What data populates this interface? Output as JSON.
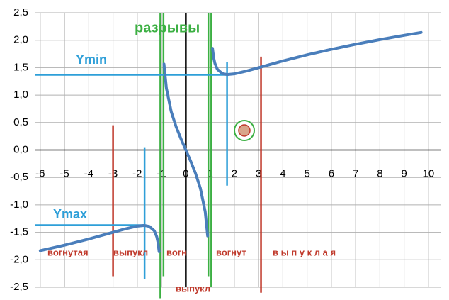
{
  "chart_data": {
    "type": "line",
    "x": [
      -6,
      -5,
      -4,
      -3,
      -2.5,
      -2,
      -1.7,
      -1.5,
      -1.3,
      -1.2,
      -1.15,
      -1.1,
      -1,
      -0.9,
      -0.8,
      -0.6,
      -0.4,
      -0.2,
      0,
      0.2,
      0.4,
      0.6,
      0.8,
      0.9,
      1,
      1.1,
      1.15,
      1.2,
      1.3,
      1.5,
      1.7,
      2,
      2.5,
      3,
      4,
      5,
      6,
      7,
      8,
      9,
      9.7
    ],
    "series": [
      {
        "color": "#4a7ebb",
        "values": [
          -1.834,
          -1.734,
          -1.622,
          -1.5,
          -1.438,
          -1.387,
          -1.375,
          -1.393,
          -1.471,
          -1.577,
          -1.676,
          -1.852,
          null,
          1.565,
          1.125,
          0.696,
          0.424,
          0.203,
          0,
          -0.203,
          -0.424,
          -0.696,
          -1.125,
          -1.565,
          null,
          1.852,
          1.676,
          1.577,
          1.471,
          1.393,
          1.375,
          1.387,
          1.438,
          1.5,
          1.622,
          1.734,
          1.834,
          1.926,
          2.011,
          2.089,
          2.141
        ]
      }
    ],
    "xlim": [
      -6.2,
      10.5
    ],
    "ylim": [
      -2.5,
      2.5
    ],
    "xticks": [
      -6,
      -5,
      -4,
      -3,
      -2,
      -1,
      0,
      1,
      2,
      3,
      4,
      5,
      6,
      7,
      8,
      9,
      10
    ],
    "yticks": [
      {
        "value": -2.5,
        "label": "-2,5"
      },
      {
        "value": -2,
        "label": "-2,0"
      },
      {
        "value": -1.5,
        "label": "-1,5"
      },
      {
        "value": -1,
        "label": "-1,0"
      },
      {
        "value": -0.5,
        "label": "-0,5"
      },
      {
        "value": 0,
        "label": "0,0"
      },
      {
        "value": 0.5,
        "label": "0,5"
      },
      {
        "value": 1,
        "label": "1,0"
      },
      {
        "value": 1.5,
        "label": "1,5"
      },
      {
        "value": 2,
        "label": "2,0"
      },
      {
        "value": 2.5,
        "label": "2,5"
      }
    ],
    "grid": true,
    "lines": [
      {
        "x": [
          -1.05,
          -1.05
        ],
        "y": [
          2.5,
          -2.7
        ],
        "color": "#3cb043"
      },
      {
        "x": [
          -0.92,
          -0.92
        ],
        "y": [
          2.5,
          -2.3
        ],
        "color": "#3cb043"
      },
      {
        "x": [
          0.93,
          0.93
        ],
        "y": [
          2.5,
          -2.3
        ],
        "color": "#3cb043"
      },
      {
        "x": [
          1.05,
          1.05
        ],
        "y": [
          2.5,
          -2.5
        ],
        "color": "#3cb043"
      },
      {
        "x": [
          -3,
          -3
        ],
        "y": [
          0.45,
          -2.3
        ],
        "color": "#c0392b"
      },
      {
        "x": [
          3.1,
          3.1
        ],
        "y": [
          1.7,
          -2.6
        ],
        "color": "#c0392b"
      },
      {
        "x": [
          -1.7,
          -1.7
        ],
        "y": [
          0.05,
          -2.35
        ],
        "color": "#2e9fd8"
      },
      {
        "x": [
          1.7,
          1.7
        ],
        "y": [
          1.6,
          -0.65
        ],
        "color": "#2e9fd8"
      },
      {
        "x": [
          -6.2,
          1.7
        ],
        "y": [
          1.37,
          1.37
        ],
        "color": "#2e9fd8"
      },
      {
        "x": [
          -6.2,
          -1.7
        ],
        "y": [
          -1.37,
          -1.37
        ],
        "color": "#2e9fd8"
      }
    ],
    "annotations": [
      {
        "text": "разрывы",
        "color": "#3cb043"
      },
      {
        "text": "Ymin",
        "color": "#2e9fd8"
      },
      {
        "text": "Ymax",
        "color": "#2e9fd8"
      },
      {
        "text": "вогнутая",
        "color": "#c0392b"
      },
      {
        "text": "выпукл",
        "color": "#c0392b"
      },
      {
        "text": "вогн",
        "color": "#c0392b"
      },
      {
        "text": "вогнут",
        "color": "#c0392b"
      },
      {
        "text": "в ы п у к л а я",
        "color": "#c0392b"
      },
      {
        "text": "выпукл",
        "color": "#c0392b"
      }
    ]
  }
}
